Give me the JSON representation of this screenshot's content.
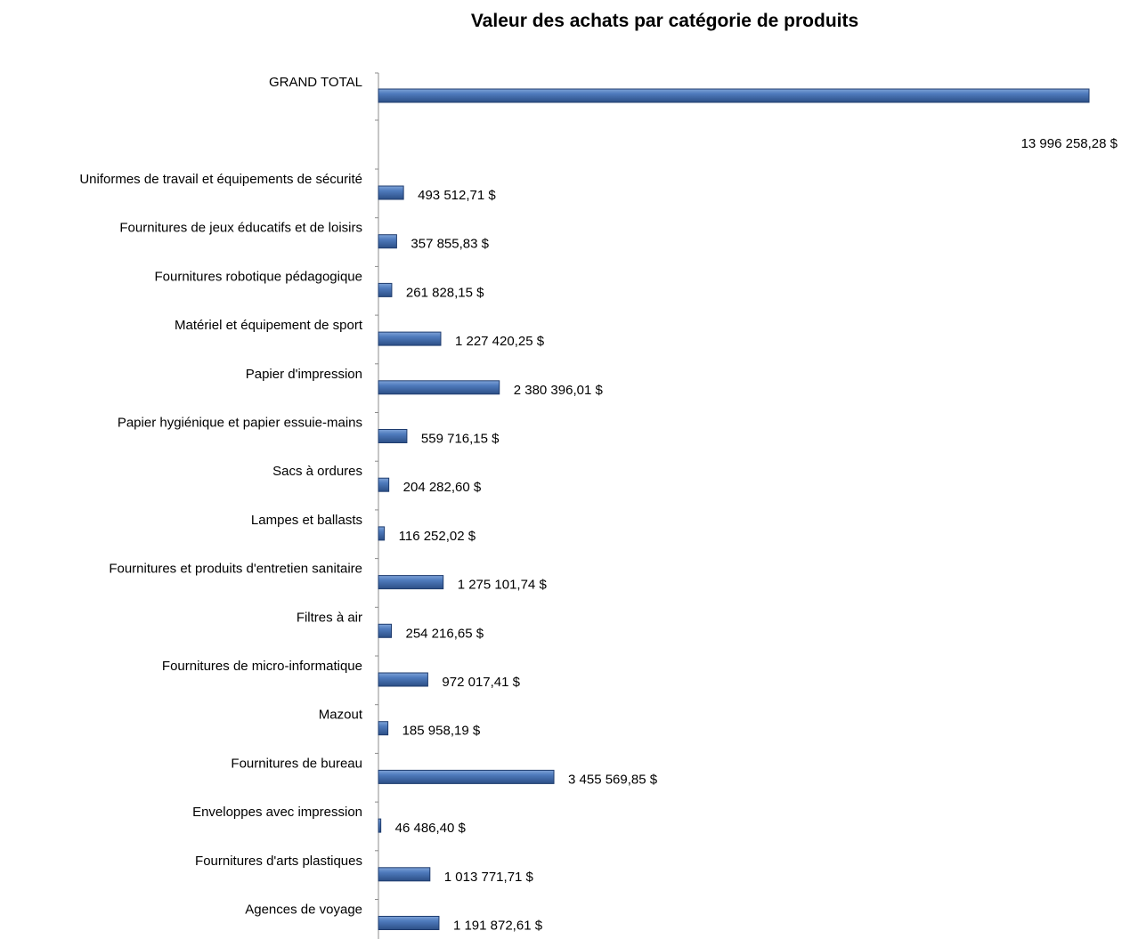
{
  "chart_data": {
    "type": "bar",
    "orientation": "horizontal",
    "title": "Valeur des achats par catégorie de produits",
    "xlabel": "",
    "ylabel": "",
    "grid": false,
    "legend": "none",
    "bar_color": "#4a72b0",
    "bar_edge_color": "#1f3c6e",
    "categories": [
      "GRAND TOTAL",
      "Uniformes de travail et équipements de sécurité",
      "Fournitures de jeux éducatifs et de loisirs",
      "Fournitures robotique pédagogique",
      "Matériel et équipement de sport",
      "Papier d'impression",
      "Papier hygiénique et papier essuie-mains",
      "Sacs à ordures",
      "Lampes et ballasts",
      "Fournitures et produits d'entretien sanitaire",
      "Filtres à air",
      "Fournitures de micro-informatique",
      "Mazout",
      "Fournitures de bureau",
      "Enveloppes avec impression",
      "Fournitures d'arts plastiques",
      "Agences  de voyage"
    ],
    "values": [
      13996258.28,
      493512.71,
      357855.83,
      261828.15,
      1227420.25,
      2380396.01,
      559716.15,
      204282.6,
      116252.02,
      1275101.74,
      254216.65,
      972017.41,
      185958.19,
      3455569.85,
      46486.4,
      1013771.71,
      1191872.61
    ],
    "data_labels": [
      "13 996 258,28 $",
      "493 512,71 $",
      "357 855,83 $",
      "261 828,15 $",
      "1 227 420,25 $",
      "2 380 396,01 $",
      "559 716,15 $",
      "204 282,60 $",
      "116 252,02 $",
      "1 275 101,74 $",
      "254 216,65 $",
      "972 017,41 $",
      "185 958,19 $",
      "3 455 569,85 $",
      "46 486,40 $",
      "1 013 771,71 $",
      "1 191 872,61 $"
    ],
    "xlim": [
      0,
      13996258.28
    ]
  }
}
